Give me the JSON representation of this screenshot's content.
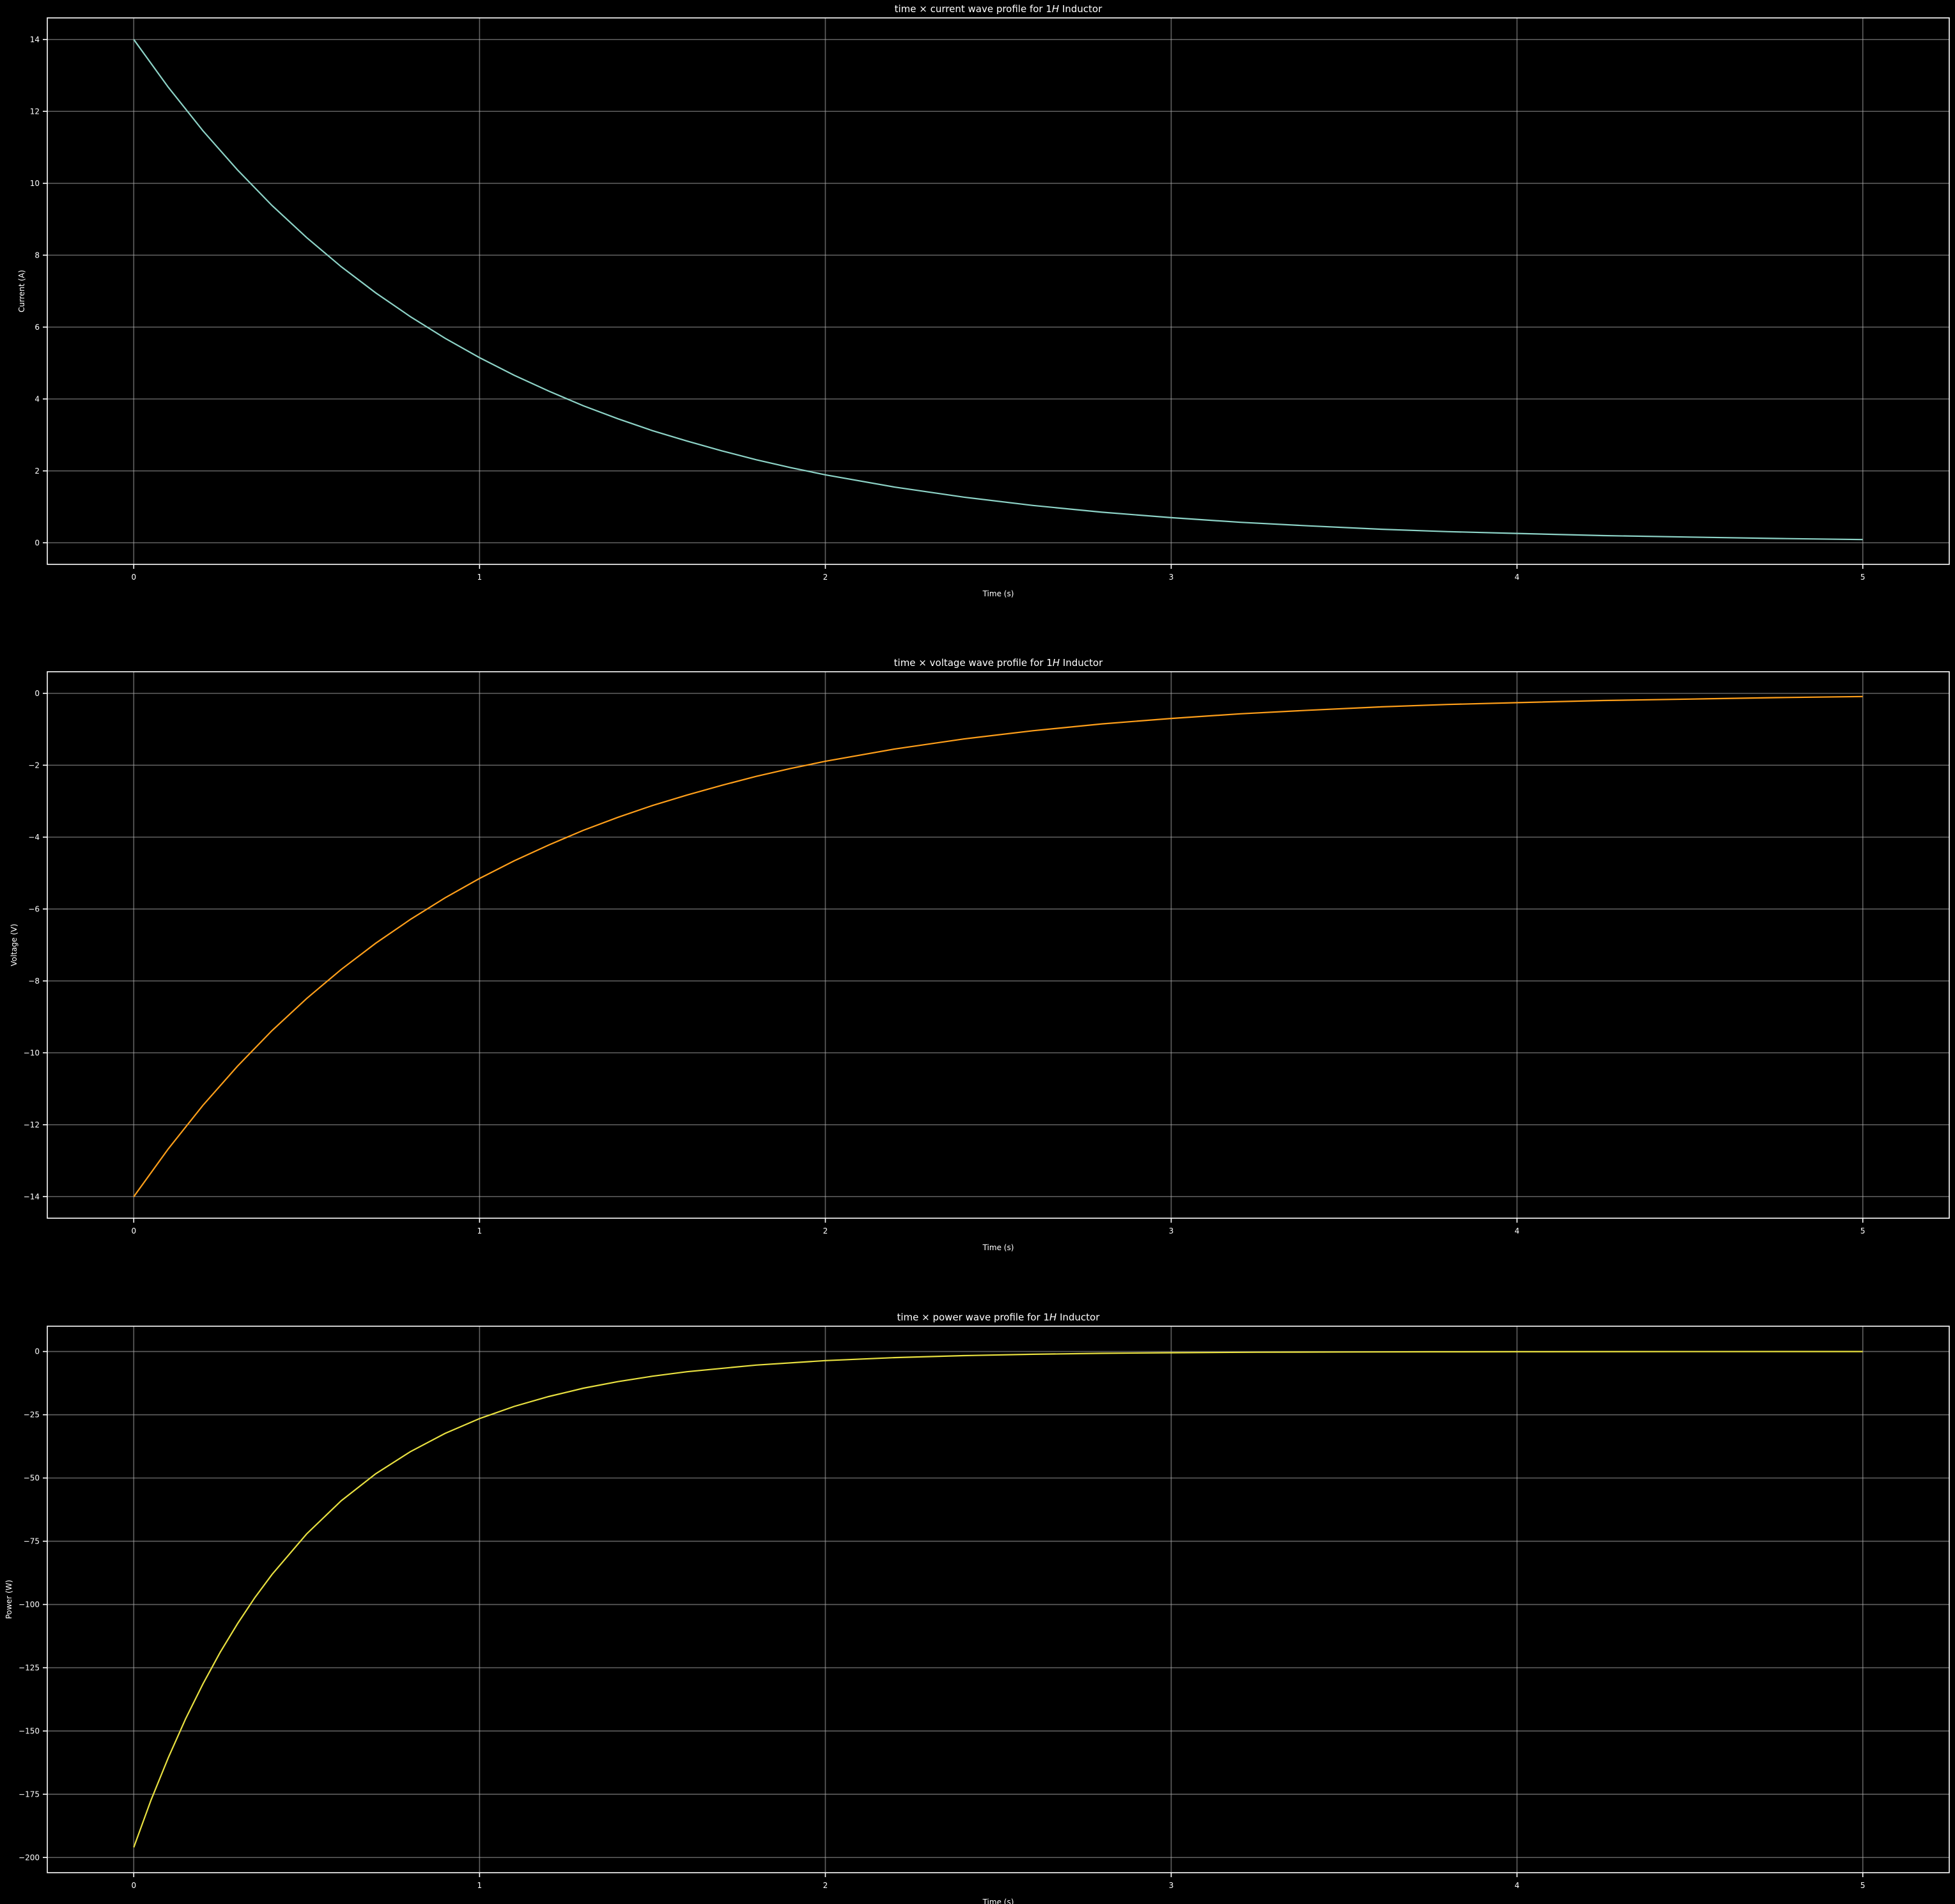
{
  "chart_data": [
    {
      "type": "line",
      "title": "time × current wave profile for 1",
      "title_var": "H",
      "title_suffix": " Inductor",
      "xlabel": "Time (s)",
      "ylabel": "Current (A)",
      "xlim": [
        -0.25,
        5.25
      ],
      "ylim": [
        -0.6,
        14.6
      ],
      "xticks": [
        0,
        1,
        2,
        3,
        4,
        5
      ],
      "yticks": [
        0,
        2,
        4,
        6,
        8,
        10,
        12,
        14
      ],
      "ytick_labels": [
        "0",
        "2",
        "4",
        "6",
        "8",
        "10",
        "12",
        "14"
      ],
      "grid": true,
      "series": [
        {
          "color": "#8dd3c7",
          "x": [
            0,
            0.1,
            0.2,
            0.3,
            0.4,
            0.5,
            0.6,
            0.7,
            0.8,
            0.9,
            1,
            1.1,
            1.2,
            1.3,
            1.4,
            1.5,
            1.6,
            1.7,
            1.8,
            1.9,
            2,
            2.2,
            2.4,
            2.6,
            2.8,
            3,
            3.2,
            3.4,
            3.6,
            3.8,
            4,
            4.25,
            4.5,
            4.75,
            5
          ],
          "y": [
            14.0,
            12.67,
            11.46,
            10.37,
            9.38,
            8.49,
            7.68,
            6.95,
            6.29,
            5.69,
            5.15,
            4.66,
            4.22,
            3.81,
            3.45,
            3.12,
            2.83,
            2.56,
            2.31,
            2.09,
            1.89,
            1.55,
            1.27,
            1.04,
            0.85,
            0.7,
            0.57,
            0.47,
            0.38,
            0.31,
            0.26,
            0.2,
            0.16,
            0.12,
            0.09
          ]
        }
      ]
    },
    {
      "type": "line",
      "title": "time × voltage wave profile for 1",
      "title_var": "H",
      "title_suffix": " Inductor",
      "xlabel": "Time (s)",
      "ylabel": "Voltage (V)",
      "xlim": [
        -0.25,
        5.25
      ],
      "ylim": [
        -14.6,
        0.6
      ],
      "xticks": [
        0,
        1,
        2,
        3,
        4,
        5
      ],
      "yticks": [
        0,
        -2,
        -4,
        -6,
        -8,
        -10,
        -12,
        -14
      ],
      "ytick_labels": [
        "0",
        "−2",
        "−4",
        "−6",
        "−8",
        "−10",
        "−12",
        "−14"
      ],
      "grid": true,
      "series": [
        {
          "color": "#ff9f1a",
          "x": [
            0,
            0.1,
            0.2,
            0.3,
            0.4,
            0.5,
            0.6,
            0.7,
            0.8,
            0.9,
            1,
            1.1,
            1.2,
            1.3,
            1.4,
            1.5,
            1.6,
            1.7,
            1.8,
            1.9,
            2,
            2.2,
            2.4,
            2.6,
            2.8,
            3,
            3.2,
            3.4,
            3.6,
            3.8,
            4,
            4.25,
            4.5,
            4.75,
            5
          ],
          "y": [
            -14.0,
            -12.67,
            -11.46,
            -10.37,
            -9.38,
            -8.49,
            -7.68,
            -6.95,
            -6.29,
            -5.69,
            -5.15,
            -4.66,
            -4.22,
            -3.81,
            -3.45,
            -3.12,
            -2.83,
            -2.56,
            -2.31,
            -2.09,
            -1.89,
            -1.55,
            -1.27,
            -1.04,
            -0.85,
            -0.7,
            -0.57,
            -0.47,
            -0.38,
            -0.31,
            -0.26,
            -0.2,
            -0.16,
            -0.12,
            -0.09
          ]
        }
      ]
    },
    {
      "type": "line",
      "title": "time × power wave profile for 1",
      "title_var": "H",
      "title_suffix": " Inductor",
      "xlabel": "Time (s)",
      "ylabel": "Power (W)",
      "xlim": [
        -0.25,
        5.25
      ],
      "ylim": [
        -206,
        10
      ],
      "xticks": [
        0,
        1,
        2,
        3,
        4,
        5
      ],
      "yticks": [
        0,
        -25,
        -50,
        -75,
        -100,
        -125,
        -150,
        -175,
        -200
      ],
      "ytick_labels": [
        "0",
        "−25",
        "−50",
        "−75",
        "−100",
        "−125",
        "−150",
        "−175",
        "−200"
      ],
      "grid": true,
      "series": [
        {
          "color": "#e8e040",
          "x": [
            0,
            0.05,
            0.1,
            0.15,
            0.2,
            0.25,
            0.3,
            0.35,
            0.4,
            0.5,
            0.6,
            0.7,
            0.8,
            0.9,
            1,
            1.1,
            1.2,
            1.3,
            1.4,
            1.5,
            1.6,
            1.8,
            2,
            2.2,
            2.4,
            2.6,
            2.8,
            3,
            3.25,
            3.5,
            3.75,
            4,
            4.5,
            5
          ],
          "y": [
            -196.0,
            -177.3,
            -160.5,
            -145.2,
            -131.4,
            -118.9,
            -107.6,
            -97.3,
            -88.1,
            -72.1,
            -59.0,
            -48.3,
            -39.6,
            -32.4,
            -26.5,
            -21.7,
            -17.8,
            -14.5,
            -11.9,
            -9.76,
            -7.99,
            -5.35,
            -3.59,
            -2.4,
            -1.61,
            -1.08,
            -0.72,
            -0.49,
            -0.29,
            -0.18,
            -0.11,
            -0.07,
            -0.02,
            -0.01
          ]
        }
      ]
    }
  ]
}
